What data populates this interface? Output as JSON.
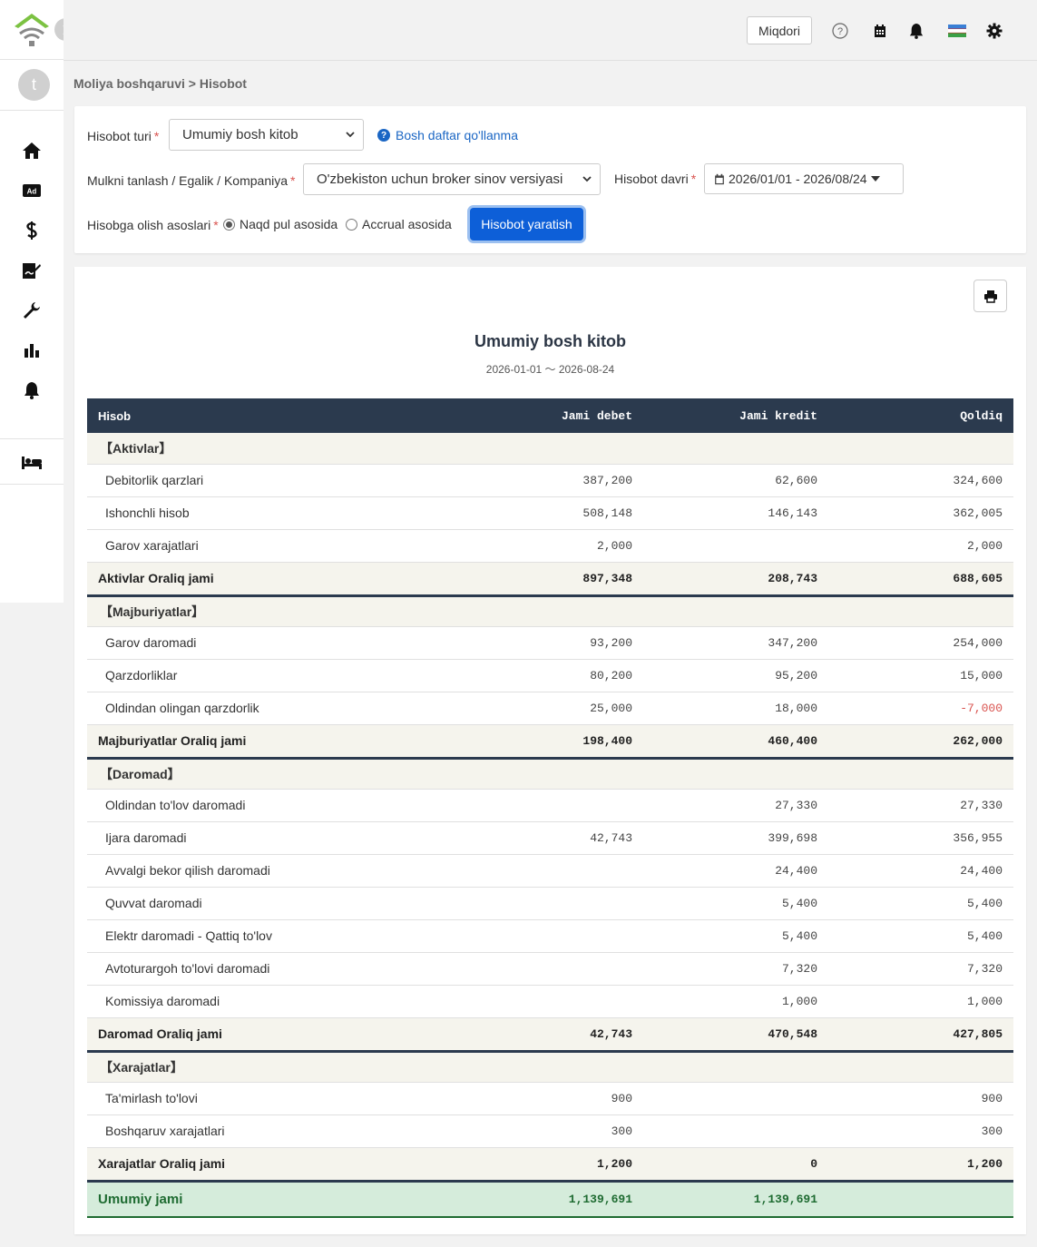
{
  "topbar": {
    "miqdori_label": "Miqdori"
  },
  "breadcrumb": "Moliya boshqaruvi > Hisobot",
  "avatar_letter": "t",
  "filters": {
    "report_type_label": "Hisobot turi",
    "report_type_value": "Umumiy bosh kitob",
    "help_link": "Bosh daftar qo'llanma",
    "property_label": "Mulkni tanlash / Egalik / Kompaniya",
    "property_value": "O'zbekiston uchun broker sinov versiyasi",
    "period_label": "Hisobot davri",
    "period_value": "2026/01/01 - 2026/08/24",
    "basis_label": "Hisobga olish asoslari",
    "basis_cash": "Naqd pul asosida",
    "basis_accrual": "Accrual asosida",
    "generate_button": "Hisobot yaratish"
  },
  "report": {
    "title": "Umumiy bosh kitob",
    "subtitle": "2026-01-01 〜 2026-08-24",
    "columns": [
      "Hisob",
      "Jami debet",
      "Jami kredit",
      "Qoldiq"
    ],
    "rows": [
      {
        "type": "section",
        "name": "【Aktivlar】"
      },
      {
        "type": "row",
        "name": "Debitorlik qarzlari",
        "debit": "387,200",
        "credit": "62,600",
        "balance": "324,600"
      },
      {
        "type": "row",
        "name": "Ishonchli hisob",
        "debit": "508,148",
        "credit": "146,143",
        "balance": "362,005"
      },
      {
        "type": "row",
        "name": "Garov xarajatlari",
        "debit": "2,000",
        "credit": "",
        "balance": "2,000"
      },
      {
        "type": "subtotal",
        "name": "Aktivlar Oraliq jami",
        "debit": "897,348",
        "credit": "208,743",
        "balance": "688,605"
      },
      {
        "type": "section",
        "name": "【Majburiyatlar】"
      },
      {
        "type": "row",
        "name": "Garov daromadi",
        "debit": "93,200",
        "credit": "347,200",
        "balance": "254,000"
      },
      {
        "type": "row",
        "name": "Qarzdorliklar",
        "debit": "80,200",
        "credit": "95,200",
        "balance": "15,000"
      },
      {
        "type": "row",
        "name": "Oldindan olingan qarzdorlik",
        "debit": "25,000",
        "credit": "18,000",
        "balance": "-7,000"
      },
      {
        "type": "subtotal",
        "name": "Majburiyatlar Oraliq jami",
        "debit": "198,400",
        "credit": "460,400",
        "balance": "262,000"
      },
      {
        "type": "section",
        "name": "【Daromad】"
      },
      {
        "type": "row",
        "name": "Oldindan to'lov daromadi",
        "debit": "",
        "credit": "27,330",
        "balance": "27,330"
      },
      {
        "type": "row",
        "name": "Ijara daromadi",
        "debit": "42,743",
        "credit": "399,698",
        "balance": "356,955"
      },
      {
        "type": "row",
        "name": "Avvalgi bekor qilish daromadi",
        "debit": "",
        "credit": "24,400",
        "balance": "24,400"
      },
      {
        "type": "row",
        "name": "Quvvat daromadi",
        "debit": "",
        "credit": "5,400",
        "balance": "5,400"
      },
      {
        "type": "row",
        "name": "Elektr daromadi - Qattiq to'lov",
        "debit": "",
        "credit": "5,400",
        "balance": "5,400"
      },
      {
        "type": "row",
        "name": "Avtoturargoh to'lovi daromadi",
        "debit": "",
        "credit": "7,320",
        "balance": "7,320"
      },
      {
        "type": "row",
        "name": "Komissiya daromadi",
        "debit": "",
        "credit": "1,000",
        "balance": "1,000"
      },
      {
        "type": "subtotal",
        "name": "Daromad Oraliq jami",
        "debit": "42,743",
        "credit": "470,548",
        "balance": "427,805"
      },
      {
        "type": "section",
        "name": "【Xarajatlar】"
      },
      {
        "type": "row",
        "name": "Ta'mirlash to'lovi",
        "debit": "900",
        "credit": "",
        "balance": "900"
      },
      {
        "type": "row",
        "name": "Boshqaruv xarajatlari",
        "debit": "300",
        "credit": "",
        "balance": "300"
      },
      {
        "type": "subtotal",
        "name": "Xarajatlar Oraliq jami",
        "debit": "1,200",
        "credit": "0",
        "balance": "1,200"
      },
      {
        "type": "grand",
        "name": "Umumiy jami",
        "debit": "1,139,691",
        "credit": "1,139,691",
        "balance": ""
      }
    ]
  },
  "icons": {
    "nav": [
      "home-icon",
      "ad-icon",
      "dollar-icon",
      "signature-icon",
      "wrench-icon",
      "bar-chart-icon",
      "bell-icon",
      "bed-icon"
    ],
    "top": [
      "help-icon",
      "calendar-icon",
      "bell-icon",
      "flag-icon",
      "gear-icon"
    ]
  },
  "colors": {
    "primary": "#0d5fd8",
    "header_dark": "#2b3a4e",
    "section_bg": "#f5f4ed",
    "grand_bg": "#d5ecdb",
    "grand_text": "#1e6b31",
    "negative": "#d9534f",
    "logo_green": "#7cc242"
  }
}
